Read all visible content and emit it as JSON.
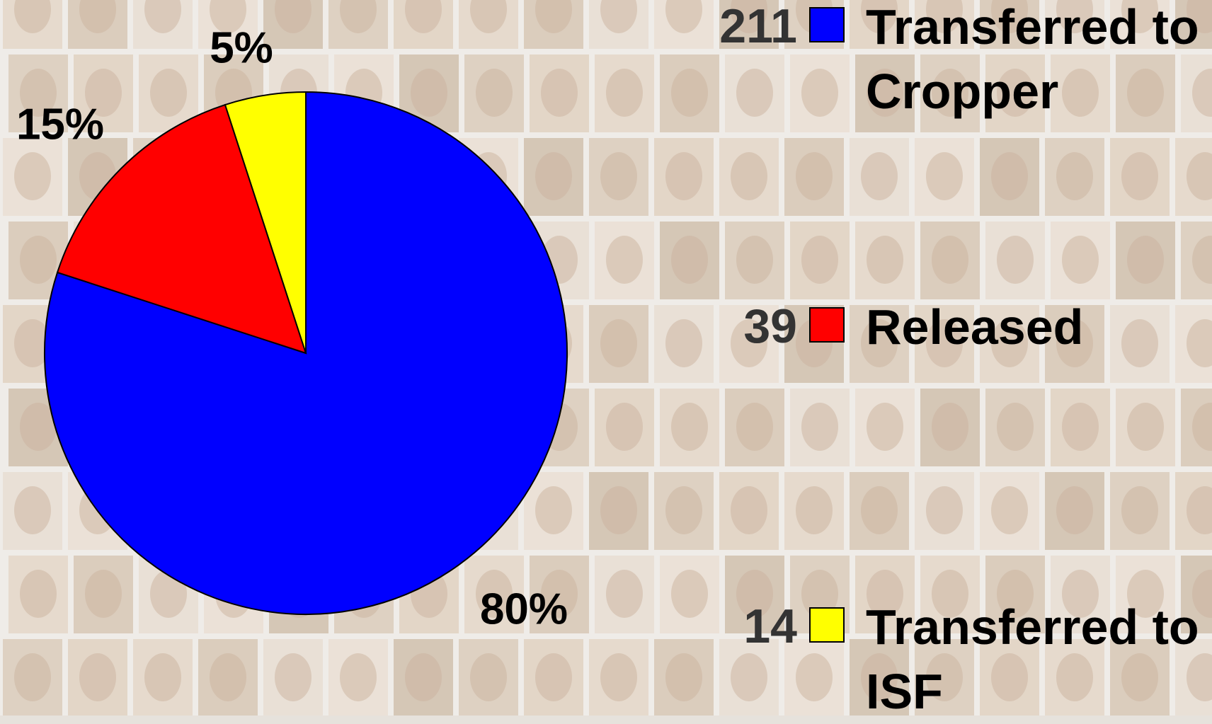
{
  "chart_data": {
    "type": "pie",
    "categories": [
      "Transferred to Cropper",
      "Released",
      "Transferred to ISF"
    ],
    "values": [
      80,
      15,
      5
    ],
    "value_labels": [
      "80%",
      "15%",
      "5%"
    ],
    "counts": [
      211,
      39,
      14
    ],
    "colors": [
      "#0000ff",
      "#ff0000",
      "#ffff00"
    ]
  }
}
